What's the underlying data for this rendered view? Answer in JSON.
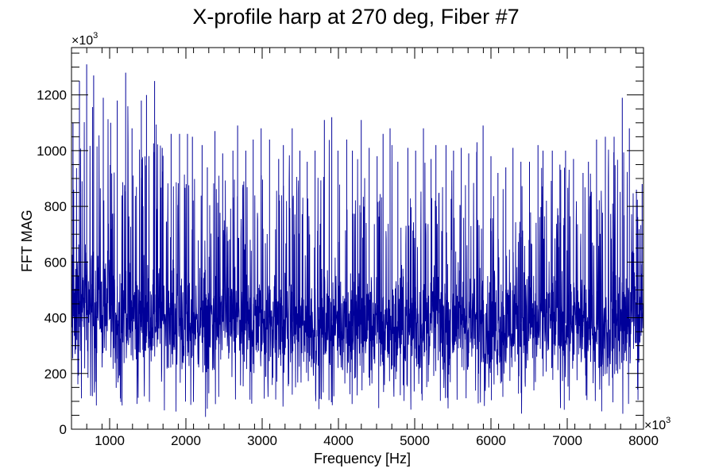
{
  "chart_data": {
    "type": "line",
    "title": "X-profile harp at 270 deg, Fiber #7",
    "xlabel": "Frequency [Hz]",
    "ylabel": "FFT MAG",
    "x_multiplier": "×10",
    "x_multiplier_exp": "3",
    "y_multiplier": "×10",
    "y_multiplier_exp": "3",
    "xlim": [
      500,
      8000
    ],
    "ylim": [
      0,
      1370
    ],
    "x_ticks": [
      1000,
      2000,
      3000,
      4000,
      5000,
      6000,
      7000,
      8000
    ],
    "y_ticks": [
      0,
      200,
      400,
      600,
      800,
      1000,
      1200
    ],
    "grid": false,
    "line_color": "#000099",
    "series": [
      {
        "x": [
          500,
          600,
          700,
          800,
          900,
          1000,
          1100,
          1200,
          1300,
          1400,
          1500,
          1600,
          1700,
          1800,
          1900,
          2000,
          2100,
          2200,
          2300,
          2400,
          2500,
          2600,
          2700,
          2800,
          2900,
          3000,
          3100,
          3200,
          3300,
          3400,
          3500,
          3600,
          3700,
          3800,
          3900,
          4000,
          4100,
          4200,
          4300,
          4400,
          4500,
          4600,
          4700,
          4800,
          4900,
          5000,
          5100,
          5200,
          5300,
          5400,
          5500,
          5600,
          5700,
          5800,
          5900,
          6000,
          6100,
          6200,
          6300,
          6400,
          6500,
          6600,
          6700,
          6800,
          6900,
          7000,
          7100,
          7200,
          7300,
          7400,
          7500,
          7600,
          7700,
          7800,
          7900,
          8000
        ],
        "y_mean": [
          450,
          470,
          460,
          455,
          440,
          430,
          420,
          425,
          410,
          420,
          430,
          420,
          405,
          410,
          400,
          400,
          395,
          390,
          395,
          390,
          390,
          395,
          385,
          380,
          385,
          380,
          375,
          380,
          375,
          385,
          380,
          375,
          370,
          380,
          390,
          385,
          380,
          370,
          375,
          380,
          380,
          375,
          375,
          380,
          385,
          380,
          385,
          380,
          380,
          385,
          390,
          385,
          380,
          385,
          390,
          385,
          380,
          375,
          380,
          385,
          380,
          380,
          375,
          380,
          375,
          380,
          375,
          370,
          370,
          375,
          380,
          380,
          390,
          400,
          420,
          430
        ],
        "y_max": [
          1100,
          1250,
          1310,
          1270,
          1190,
          1100,
          1180,
          1280,
          1080,
          1180,
          1200,
          1250,
          1010,
          1060,
          1060,
          1060,
          1050,
          1020,
          940,
          1070,
          990,
          1000,
          1090,
          1000,
          1040,
          1080,
          1040,
          970,
          1020,
          1080,
          1000,
          960,
          1000,
          1110,
          1120,
          1000,
          1040,
          1000,
          1110,
          1010,
          980,
          1060,
          1080,
          960,
          1010,
          1000,
          1080,
          970,
          1020,
          1020,
          1000,
          1010,
          990,
          1030,
          1090,
          980,
          920,
          940,
          1010,
          960,
          960,
          1020,
          1000,
          1000,
          950,
          1000,
          970,
          920,
          960,
          1040,
          1050,
          1050,
          1190,
          1080,
          860,
          880
        ],
        "y_min": [
          80,
          60,
          50,
          60,
          90,
          70,
          70,
          80,
          40,
          70,
          80,
          70,
          60,
          70,
          60,
          70,
          30,
          20,
          60,
          70,
          80,
          60,
          70,
          80,
          70,
          70,
          80,
          60,
          70,
          70,
          70,
          80,
          60,
          60,
          40,
          50,
          30,
          70,
          40,
          80,
          70,
          60,
          70,
          80,
          80,
          60,
          70,
          70,
          10,
          50,
          60,
          60,
          70,
          60,
          50,
          60,
          80,
          30,
          30,
          50,
          60,
          70,
          60,
          70,
          60,
          70,
          70,
          70,
          60,
          50,
          60,
          60,
          40,
          10,
          20,
          60
        ]
      }
    ]
  }
}
